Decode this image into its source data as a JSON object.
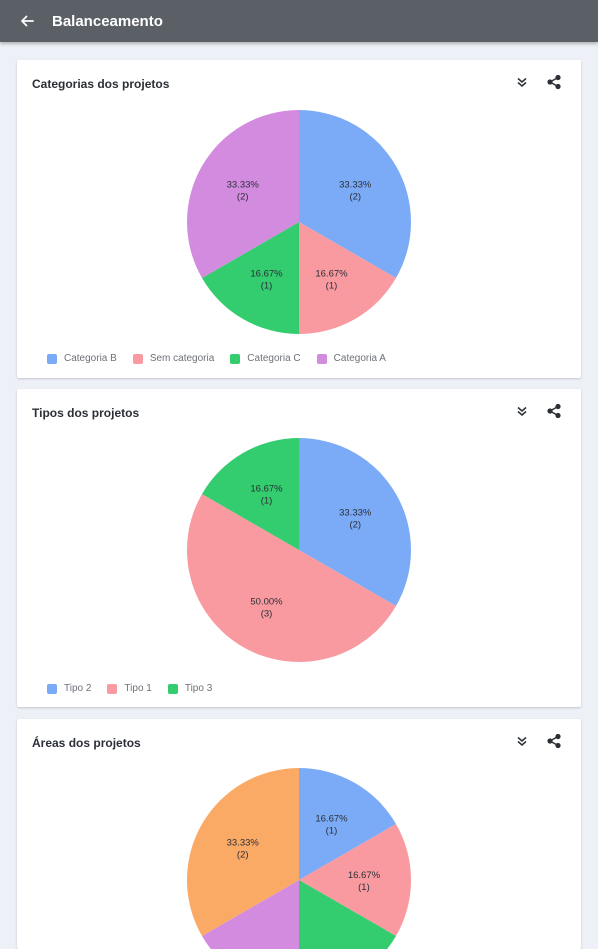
{
  "appbar": {
    "title": "Balanceamento",
    "back_icon": "arrow-left-icon"
  },
  "cards": [
    {
      "title": "Categorias dos projetos",
      "chart_data": {
        "type": "pie",
        "slices": [
          {
            "name": "Categoria B",
            "value": 2,
            "percent": "33.33%",
            "count": "(2)",
            "color": "#7baaf7"
          },
          {
            "name": "Sem categoria",
            "value": 1,
            "percent": "16.67%",
            "count": "(1)",
            "color": "#f99aa0"
          },
          {
            "name": "Categoria C",
            "value": 1,
            "percent": "16.67%",
            "count": "(1)",
            "color": "#33cc6e"
          },
          {
            "name": "Categoria A",
            "value": 2,
            "percent": "33.33%",
            "count": "(2)",
            "color": "#d38be0"
          }
        ]
      }
    },
    {
      "title": "Tipos dos projetos",
      "chart_data": {
        "type": "pie",
        "slices": [
          {
            "name": "Tipo 2",
            "value": 2,
            "percent": "33.33%",
            "count": "(2)",
            "color": "#7baaf7"
          },
          {
            "name": "Tipo 1",
            "value": 3,
            "percent": "50.00%",
            "count": "(3)",
            "color": "#f99aa0"
          },
          {
            "name": "Tipo 3",
            "value": 1,
            "percent": "16.67%",
            "count": "(1)",
            "color": "#33cc6e"
          }
        ]
      }
    },
    {
      "title": "Áreas dos projetos",
      "chart_data": {
        "type": "pie",
        "slices": [
          {
            "value": 1,
            "percent": "16.67%",
            "count": "(1)",
            "color": "#7baaf7"
          },
          {
            "value": 1,
            "percent": "16.67%",
            "count": "(1)",
            "color": "#f99aa0"
          },
          {
            "value": 1,
            "percent": "",
            "count": "",
            "color": "#33cc6e"
          },
          {
            "value": 1,
            "percent": "",
            "count": "",
            "color": "#d38be0"
          },
          {
            "value": 2,
            "percent": "33.33%",
            "count": "(2)",
            "color": "#fbaa66"
          }
        ]
      }
    }
  ]
}
